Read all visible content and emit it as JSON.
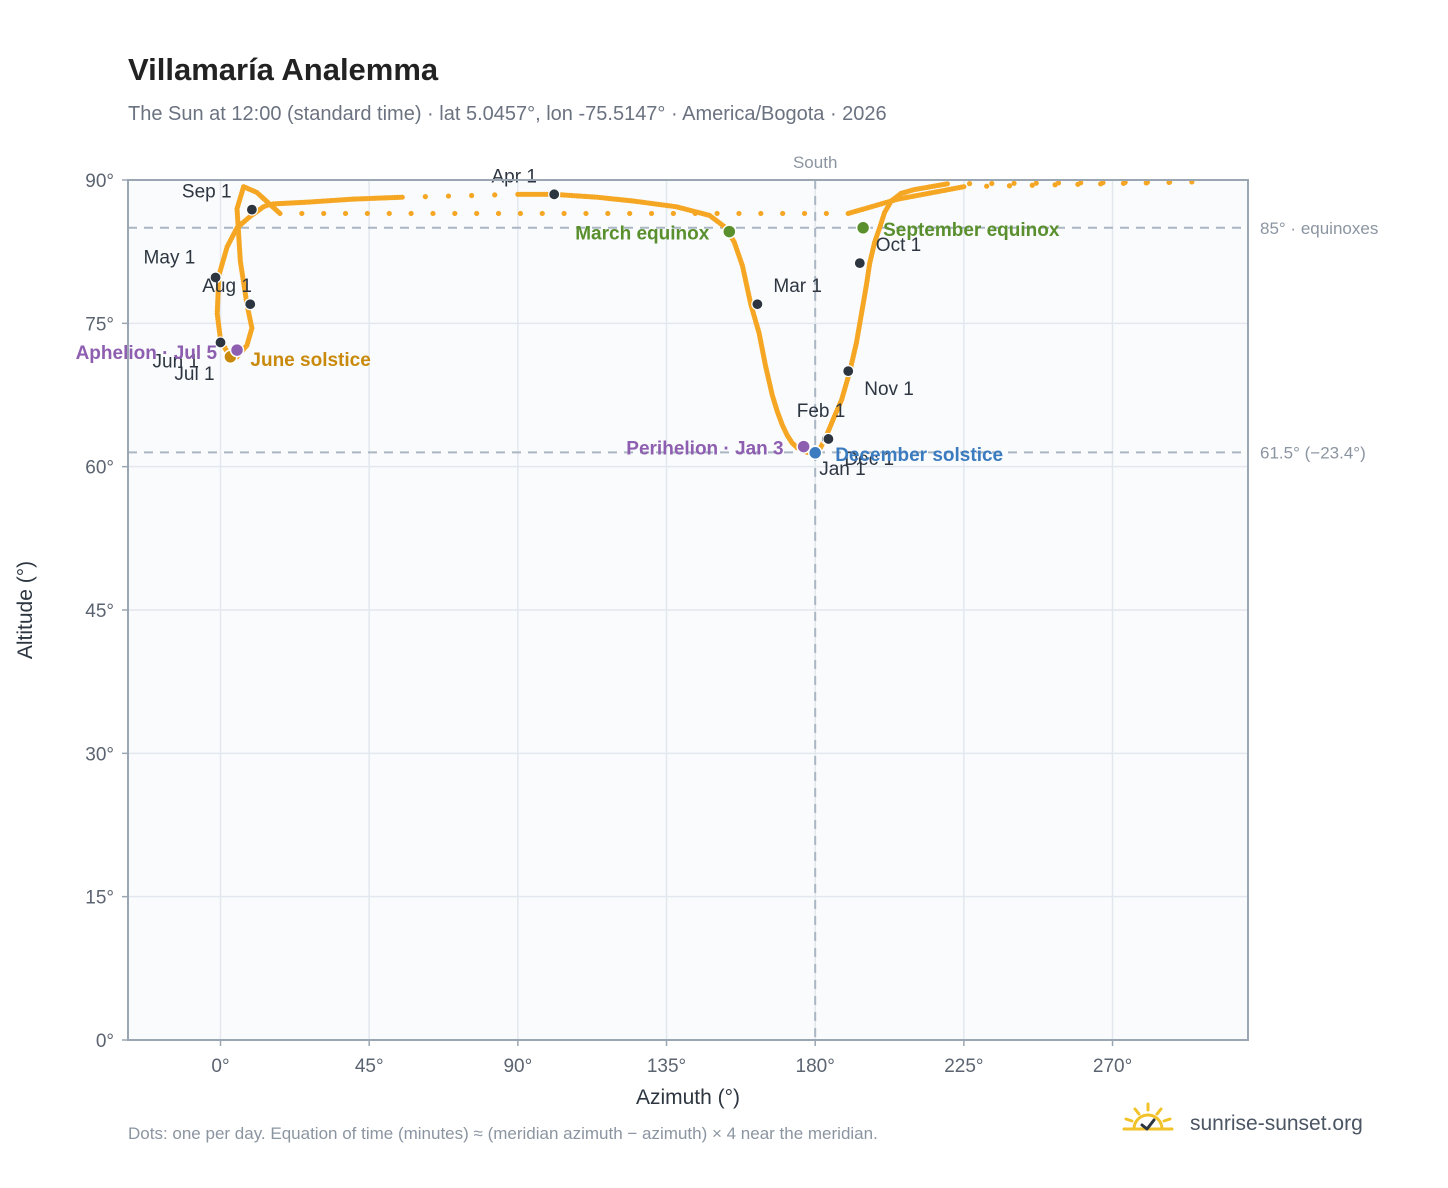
{
  "title": "Villamaría Analemma",
  "subtitle": "The Sun at 12:00 (standard time) · lat 5.0457°, lon -75.5147° · America/Bogota · 2026",
  "footnote": "Dots: one per day. Equation of time (minutes) ≈ (meridian azimuth − azimuth) × 4 near the meridian.",
  "brand": {
    "name": "sunrise-sunset.org",
    "icon": "sun-check-icon"
  },
  "colors": {
    "curve": "#f5a623",
    "month_marker": "#2d3640",
    "equinox": "#5a8f2e",
    "june_solstice": "#c98a0c",
    "december_solstice": "#3b7bbf",
    "aphelion_perihelion": "#8e5fb0",
    "reference_line": "#aab6c3",
    "plot_bg": "#f9fbfd"
  },
  "chart_data": {
    "type": "scatter",
    "title": "Villamaría Analemma",
    "xlabel": "Azimuth (°)",
    "ylabel": "Altitude (°)",
    "xlim": [
      -28,
      311
    ],
    "ylim": [
      0,
      90
    ],
    "x_ticks": [
      0,
      45,
      90,
      135,
      180,
      225,
      270
    ],
    "x_tick_labels": [
      "0°",
      "45°",
      "90°",
      "135°",
      "180°",
      "225°",
      "270°"
    ],
    "y_ticks": [
      0,
      15,
      30,
      45,
      60,
      75,
      90
    ],
    "y_tick_labels": [
      "0°",
      "15°",
      "30°",
      "45°",
      "60°",
      "75°",
      "90°"
    ],
    "grid": true,
    "reference_lines": [
      {
        "axis": "x",
        "value": 180,
        "label": "South"
      },
      {
        "axis": "y",
        "value": 85,
        "label": "85° · equinoxes"
      },
      {
        "axis": "y",
        "value": 61.5,
        "label": "61.5° (−23.4°)"
      }
    ],
    "series": [
      {
        "x": [
          181,
          183,
          185.5,
          188,
          190.5,
          192.5,
          194,
          195.5,
          196.5,
          198,
          199.5,
          201,
          203,
          206,
          210,
          220,
          294,
          225,
          205,
          190,
          18,
          11,
          7,
          5,
          6,
          8,
          9.5,
          8,
          5,
          2,
          0,
          -1,
          -0.5,
          2,
          5,
          9,
          13,
          14.5,
          16,
          27,
          40,
          55,
          90,
          101,
          114,
          125,
          138,
          148,
          153,
          155.5,
          158,
          160.5,
          163,
          165,
          167,
          168.5,
          170,
          171.5,
          173,
          174.5,
          176,
          177.5,
          179.5,
          181
        ],
        "y": [
          61.6,
          62.9,
          65.0,
          67.0,
          70.0,
          73.0,
          76.0,
          79.0,
          81.3,
          83.5,
          85.0,
          86.6,
          87.8,
          88.6,
          89.0,
          89.6,
          89.8,
          89.3,
          88.0,
          86.5,
          86.5,
          88.7,
          89.3,
          87.0,
          81.5,
          77.0,
          74.5,
          72.7,
          71.5,
          72.0,
          73.3,
          76.0,
          80.0,
          83.0,
          85.0,
          86.2,
          87.2,
          87.4,
          87.5,
          87.7,
          88.0,
          88.2,
          88.5,
          88.5,
          88.2,
          87.8,
          87.2,
          86.3,
          85.0,
          83.5,
          81.0,
          77.0,
          74.0,
          70.5,
          67.5,
          65.8,
          64.4,
          63.3,
          62.5,
          62.0,
          61.7,
          61.5,
          61.45,
          61.6
        ]
      }
    ],
    "month_markers": [
      {
        "label": "Jan 1",
        "x": 180,
        "y": 61.45
      },
      {
        "label": "Feb 1",
        "x": 183.5,
        "y": 62.9
      },
      {
        "label": "Mar 1",
        "x": 162.5,
        "y": 77.0
      },
      {
        "label": "Apr 1",
        "x": 101,
        "y": 88.5
      },
      {
        "label": "May 1",
        "x": -1.5,
        "y": 79.8
      },
      {
        "label": "Jun 1",
        "x": 0,
        "y": 73.0
      },
      {
        "label": "Jul 1",
        "x": 3,
        "y": 71.5
      },
      {
        "label": "Aug 1",
        "x": 9,
        "y": 77.0
      },
      {
        "label": "Sep 1",
        "x": 9.5,
        "y": 86.9
      },
      {
        "label": "Oct 1",
        "x": 193.5,
        "y": 81.3
      },
      {
        "label": "Nov 1",
        "x": 190,
        "y": 70.0
      },
      {
        "label": "Dec 1",
        "x": 184,
        "y": 62.9
      }
    ],
    "events": [
      {
        "label": "March equinox",
        "x": 154,
        "y": 84.6,
        "kind": "equinox"
      },
      {
        "label": "September equinox",
        "x": 194.5,
        "y": 85.0,
        "kind": "equinox"
      },
      {
        "label": "June solstice",
        "x": 3,
        "y": 71.5,
        "kind": "june_solstice"
      },
      {
        "label": "December solstice",
        "x": 180,
        "y": 61.45,
        "kind": "december_solstice"
      },
      {
        "label": "Aphelion · Jul 5",
        "x": 5,
        "y": 72.2,
        "kind": "aphelion_perihelion"
      },
      {
        "label": "Perihelion · Jan 3",
        "x": 176.5,
        "y": 62.1,
        "kind": "aphelion_perihelion"
      }
    ]
  }
}
